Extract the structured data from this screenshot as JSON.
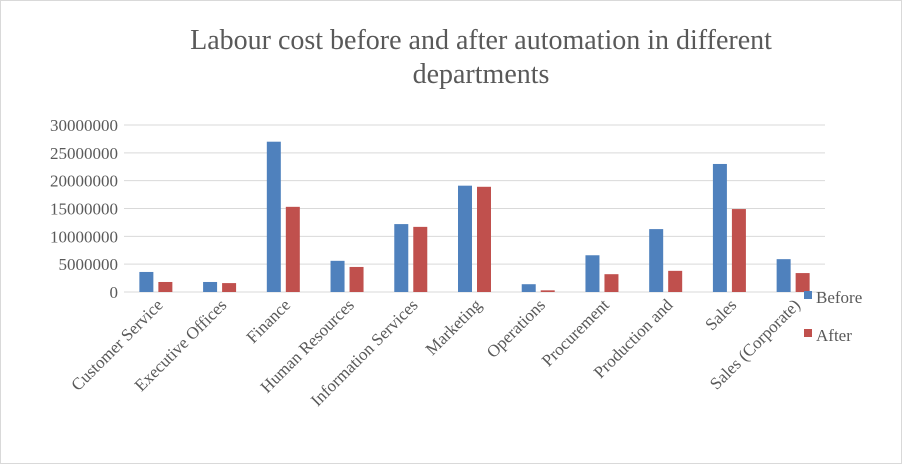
{
  "chart_data": {
    "type": "bar",
    "title_lines": [
      "Labour cost before and after automation in different",
      "departments"
    ],
    "xlabel": "",
    "ylabel": "",
    "categories": [
      "Customer Service",
      "Executive Offices",
      "Finance",
      "Human Resources",
      "Information Services",
      "Marketing",
      "Operations",
      "Procurement",
      "Production and",
      "Sales",
      "Sales (Corporate)"
    ],
    "series": [
      {
        "name": "Before",
        "color": "#4f81bd",
        "values": [
          3600000,
          1800000,
          27000000,
          5600000,
          12200000,
          19100000,
          1400000,
          6600000,
          11300000,
          23000000,
          5900000
        ]
      },
      {
        "name": "After",
        "color": "#c0504d",
        "values": [
          1800000,
          1600000,
          15300000,
          4500000,
          11700000,
          18900000,
          300000,
          3200000,
          3800000,
          14900000,
          3400000
        ]
      }
    ],
    "ylim": [
      0,
      30000000
    ],
    "yticks": [
      "0",
      "5000000",
      "10000000",
      "15000000",
      "20000000",
      "25000000",
      "30000000"
    ],
    "grid": true,
    "gridline_color": "#d9d9d9",
    "legend_position": "right",
    "text_color": "#595959"
  }
}
